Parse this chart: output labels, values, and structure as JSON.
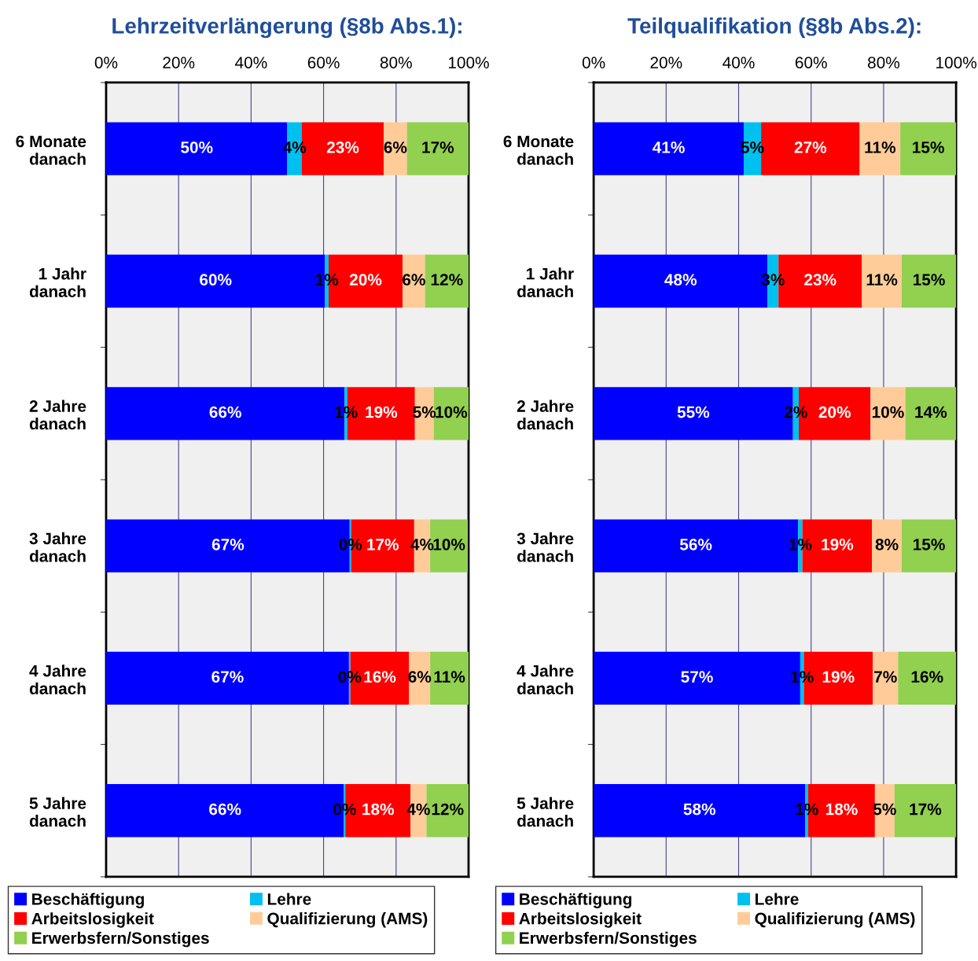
{
  "chart_data": [
    {
      "type": "bar",
      "orientation": "horizontal",
      "stacked": true,
      "title": "Lehrzeitverlängerung (§8b Abs.1):",
      "categories": [
        "6 Monate\ndanach",
        "1 Jahr\ndanach",
        "2 Jahre\ndanach",
        "3 Jahre\ndanach",
        "4 Jahre\ndanach",
        "5 Jahre\ndanach"
      ],
      "series": [
        {
          "name": "Beschäftigung",
          "color": "#0000ff",
          "values": [
            50,
            60.4,
            65.8,
            67.2,
            67,
            65.6
          ],
          "value_labels": [
            "50%",
            "60%",
            "66%",
            "67%",
            "67%",
            "66%"
          ]
        },
        {
          "name": "Lehre",
          "color": "#00c0f0",
          "values": [
            4,
            1,
            0.8,
            0.4,
            0.4,
            0.4
          ],
          "value_labels": [
            "4%",
            "1%",
            "1%",
            "0%",
            "0%",
            "0%"
          ]
        },
        {
          "name": "Arbeitslosigkeit",
          "color": "#ff0000",
          "values": [
            22.6,
            20.4,
            18.6,
            17.4,
            16.2,
            18
          ],
          "value_labels": [
            "23%",
            "20%",
            "19%",
            "17%",
            "16%",
            "18%"
          ]
        },
        {
          "name": "Qualifizierung (AMS)",
          "color": "#ffcc99",
          "values": [
            6.4,
            6.2,
            5.2,
            4.4,
            5.8,
            4.4
          ],
          "value_labels": [
            "6%",
            "6%",
            "5%",
            "4%",
            "6%",
            "4%"
          ]
        },
        {
          "name": "Erwerbsfern/Sonstiges",
          "color": "#92d050",
          "values": [
            17,
            12,
            9.6,
            10.4,
            10.6,
            11.6
          ],
          "value_labels": [
            "17%",
            "12%",
            "10%",
            "10%",
            "11%",
            "12%"
          ]
        }
      ],
      "xlim": [
        0,
        100
      ],
      "xticks": [
        {
          "value": 0,
          "label": "0%"
        },
        {
          "value": 20,
          "label": "20%"
        },
        {
          "value": 40,
          "label": "40%"
        },
        {
          "value": 60,
          "label": "60%"
        },
        {
          "value": 80,
          "label": "80%"
        },
        {
          "value": 100,
          "label": "100%"
        }
      ],
      "grid": "x",
      "legend": "bottom"
    },
    {
      "type": "bar",
      "orientation": "horizontal",
      "stacked": true,
      "title": "Teilqualifikation (§8b Abs.2):",
      "categories": [
        "6 Monate\ndanach",
        "1 Jahr\ndanach",
        "2 Jahre\ndanach",
        "3 Jahre\ndanach",
        "4 Jahre\ndanach",
        "5 Jahre\ndanach"
      ],
      "series": [
        {
          "name": "Beschäftigung",
          "color": "#0000ff",
          "values": [
            41.4,
            48,
            55,
            56.4,
            57,
            58.4
          ],
          "value_labels": [
            "41%",
            "48%",
            "55%",
            "56%",
            "57%",
            "58%"
          ]
        },
        {
          "name": "Lehre",
          "color": "#00c0f0",
          "values": [
            4.8,
            3,
            1.6,
            1.2,
            1,
            0.8
          ],
          "value_labels": [
            "5%",
            "3%",
            "2%",
            "1%",
            "1%",
            "1%"
          ]
        },
        {
          "name": "Arbeitslosigkeit",
          "color": "#ff0000",
          "values": [
            27.2,
            23,
            19.8,
            19.2,
            19,
            18.4
          ],
          "value_labels": [
            "27%",
            "23%",
            "20%",
            "19%",
            "19%",
            "18%"
          ]
        },
        {
          "name": "Qualifizierung (AMS)",
          "color": "#ffcc99",
          "values": [
            11.2,
            11,
            9.6,
            8.2,
            7,
            5.4
          ],
          "value_labels": [
            "11%",
            "11%",
            "10%",
            "8%",
            "7%",
            "5%"
          ]
        },
        {
          "name": "Erwerbsfern/Sonstiges",
          "color": "#92d050",
          "values": [
            15.4,
            15,
            14,
            15,
            16,
            17
          ],
          "value_labels": [
            "15%",
            "15%",
            "14%",
            "15%",
            "16%",
            "17%"
          ]
        }
      ],
      "xlim": [
        0,
        100
      ],
      "xticks": [
        {
          "value": 0,
          "label": "0%"
        },
        {
          "value": 20,
          "label": "20%"
        },
        {
          "value": 40,
          "label": "40%"
        },
        {
          "value": 60,
          "label": "60%"
        },
        {
          "value": 80,
          "label": "80%"
        },
        {
          "value": 100,
          "label": "100%"
        }
      ],
      "grid": "x",
      "legend": "bottom"
    }
  ]
}
